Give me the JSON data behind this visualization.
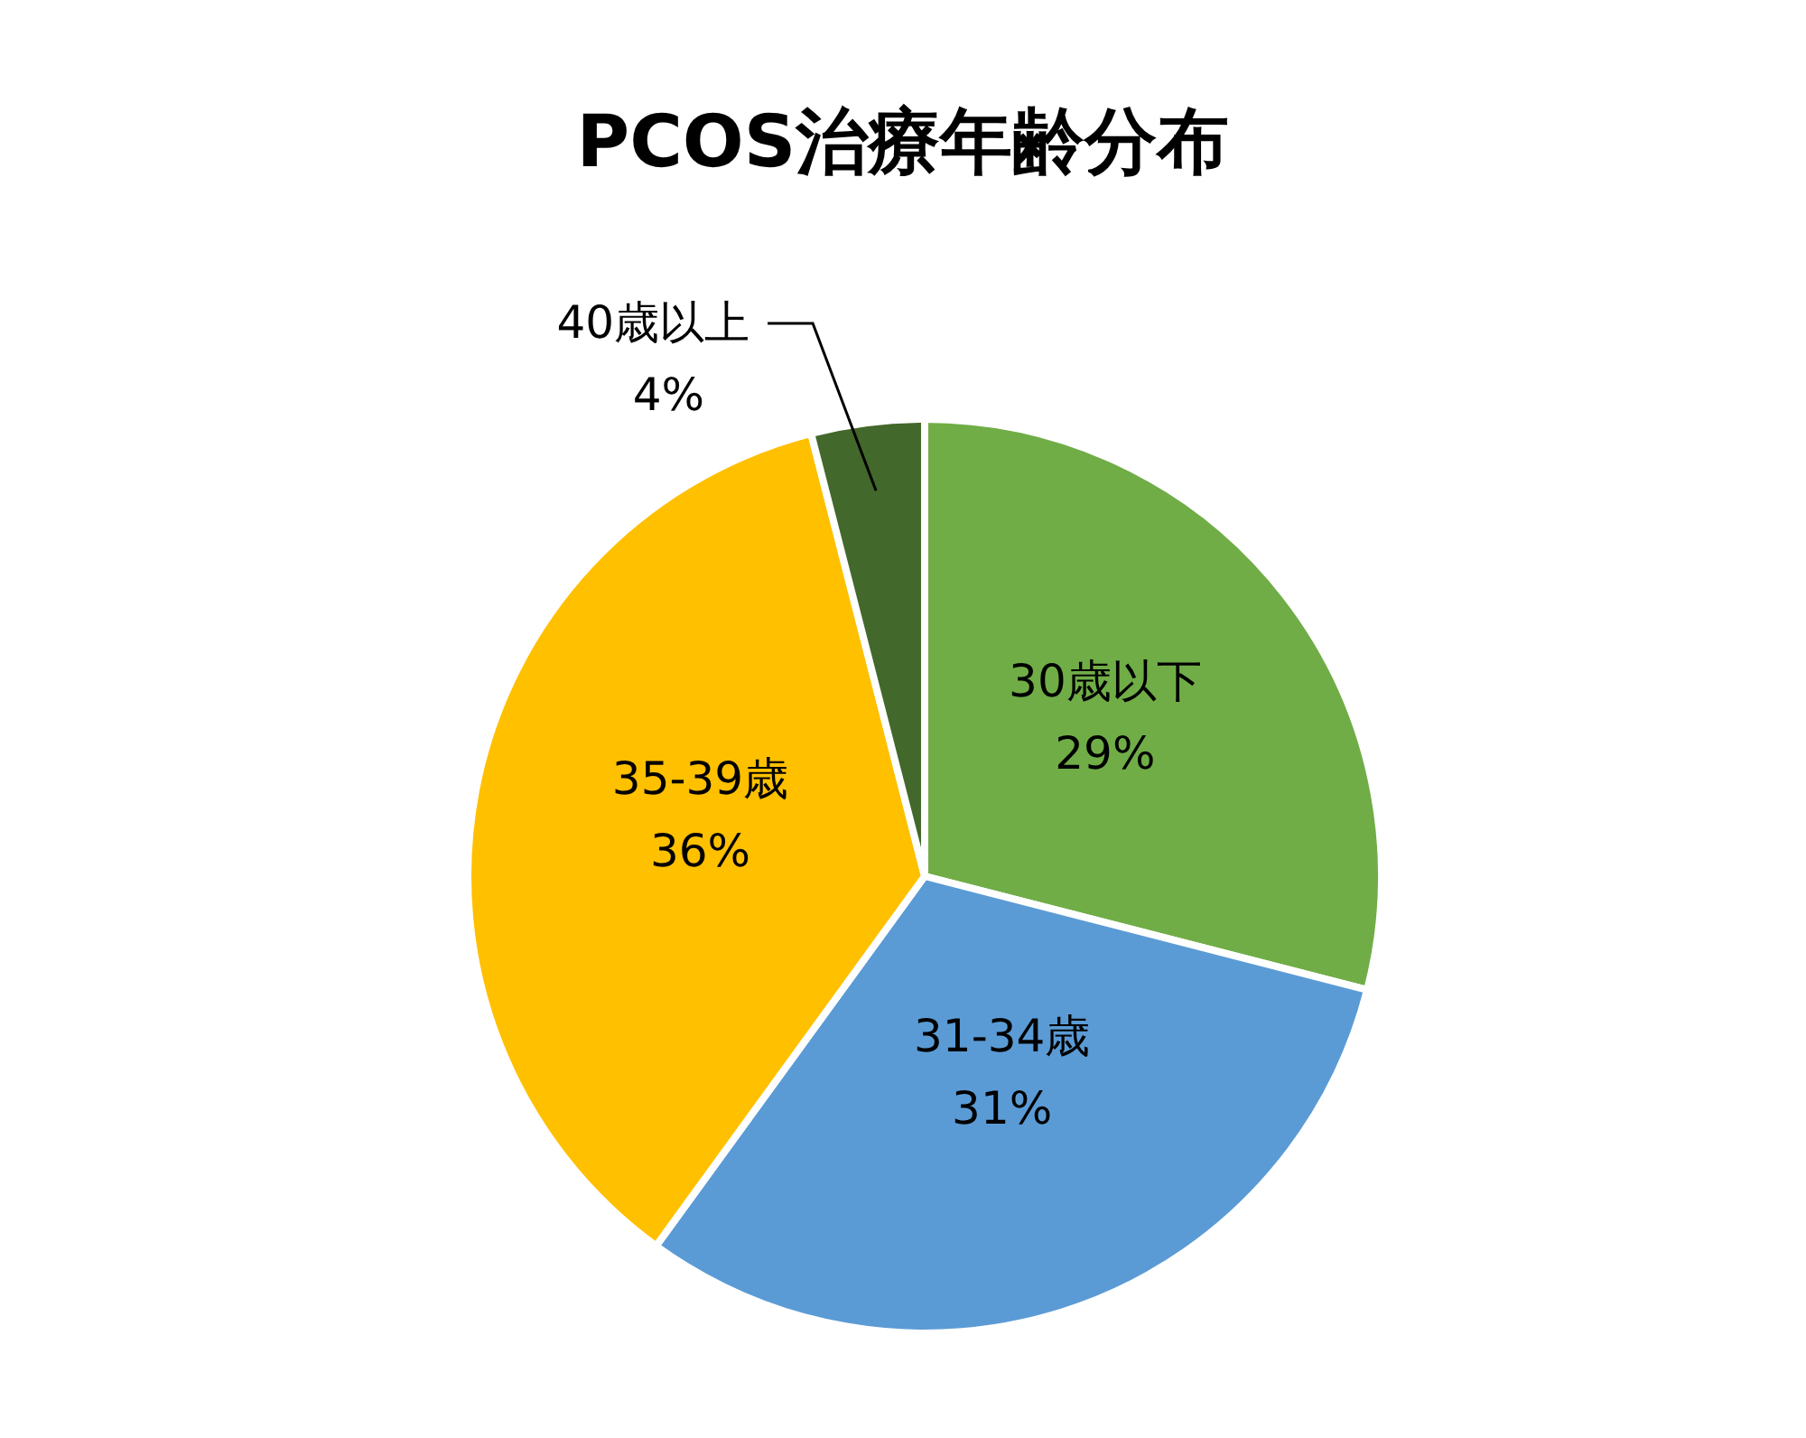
{
  "chart_data": {
    "type": "pie",
    "title": "PCOS治療年齢分布",
    "categories": [
      "30歳以下",
      "31-34歳",
      "35-39歳",
      "40歳以上"
    ],
    "values": [
      29,
      31,
      36,
      4
    ],
    "value_labels": [
      "29%",
      "31%",
      "36%",
      "4%"
    ],
    "colors": [
      "#70ad47",
      "#5b9bd5",
      "#ffc000",
      "#43682b"
    ]
  }
}
